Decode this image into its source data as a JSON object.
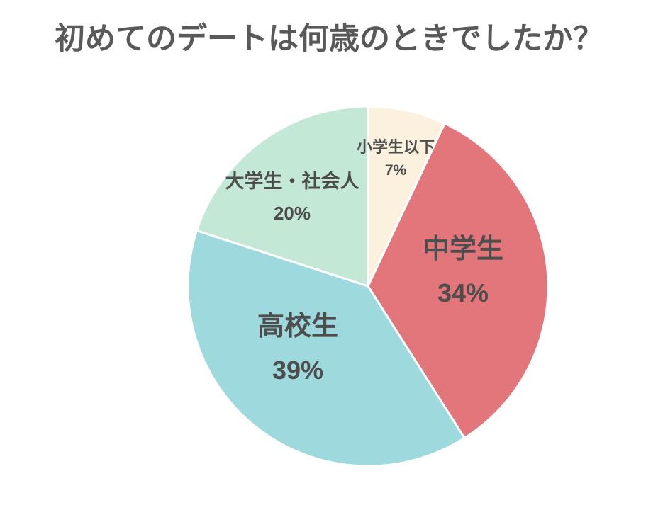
{
  "page": {
    "background_color": "#ffffff"
  },
  "chart_data": {
    "type": "pie",
    "title": "初めてのデートは何歳のときでしたか？",
    "title_color": "#595959",
    "label_color": "#4D4D4D",
    "slice_stroke_color": "#FFFFFF",
    "legend_position": "none",
    "start_angle_deg": 0,
    "direction": "clockwise",
    "total": 100,
    "categories": [
      "小学生以下",
      "中学生",
      "高校生",
      "大学生・社会人"
    ],
    "values": [
      7,
      34,
      39,
      20
    ],
    "slices": [
      {
        "label": "小学生以下",
        "value_pct": 7,
        "display": "7%",
        "color": "#FBF1DE"
      },
      {
        "label": "中学生",
        "value_pct": 34,
        "display": "34%",
        "color": "#E2767B"
      },
      {
        "label": "高校生",
        "value_pct": 39,
        "display": "39%",
        "color": "#9EDADD"
      },
      {
        "label": "大学生・社会人",
        "value_pct": 20,
        "display": "20%",
        "color": "#C3E8D6"
      }
    ]
  }
}
